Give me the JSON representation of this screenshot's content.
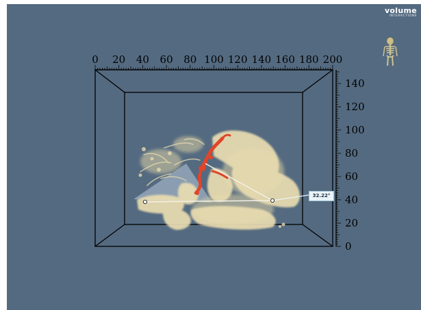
{
  "brand": {
    "word": "volume",
    "tagline": "INTERACTIONS",
    "icon": "orientation-skeleton-icon"
  },
  "axes": {
    "x_ticks": [
      "0",
      "20",
      "40",
      "60",
      "80",
      "100",
      "120",
      "140",
      "160",
      "180",
      "200"
    ],
    "y_ticks": [
      "0",
      "20",
      "40",
      "60",
      "80",
      "100",
      "120",
      "140"
    ],
    "x_range": [
      0,
      200
    ],
    "y_range": [
      0,
      140
    ]
  },
  "measurement": {
    "angle_label": "32.22°"
  },
  "colors": {
    "background": "#546a80",
    "bone": "#e9dcb0",
    "vessel": "#e0452a",
    "frame": "#000000",
    "label_box": "#e9f4f8"
  }
}
